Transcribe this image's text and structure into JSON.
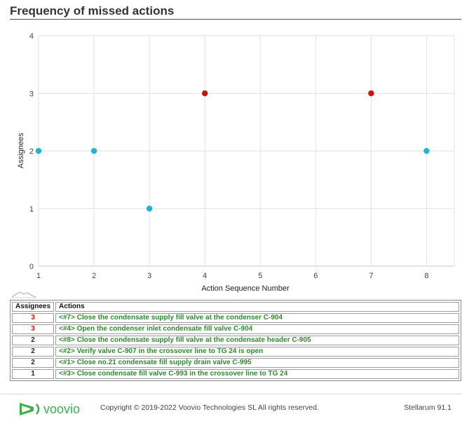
{
  "page": {
    "title": "Frequency of missed actions"
  },
  "chart_data": {
    "type": "scatter",
    "xlabel": "Action Sequence Number",
    "ylabel": "Assignees",
    "x_ticks": [
      1,
      2,
      3,
      4,
      5,
      6,
      7,
      8
    ],
    "y_ticks": [
      0,
      1,
      2,
      3,
      4
    ],
    "xlim": [
      1,
      8.5
    ],
    "ylim": [
      0,
      4
    ],
    "grid": true,
    "points": [
      {
        "x": 1,
        "y": 2,
        "color": "#1fb3d8"
      },
      {
        "x": 2,
        "y": 2,
        "color": "#1fb3d8"
      },
      {
        "x": 3,
        "y": 1,
        "color": "#1fb3d8"
      },
      {
        "x": 4,
        "y": 3,
        "color": "#cc1111"
      },
      {
        "x": 7,
        "y": 3,
        "color": "#cc1111"
      },
      {
        "x": 8,
        "y": 2,
        "color": "#1fb3d8"
      }
    ]
  },
  "table": {
    "headers": {
      "assignees": "Assignees",
      "actions": "Actions"
    },
    "rows": [
      {
        "assignees": "3",
        "action": "<#7> Close the condensate supply fill valve at the condenser C-904",
        "count_color": "#cc1111"
      },
      {
        "assignees": "3",
        "action": "<#4> Open the condenser inlet condensate fill valve C-904",
        "count_color": "#cc1111"
      },
      {
        "assignees": "2",
        "action": "<#8> Close the condensate supply fill valve at the condensate header C-905",
        "count_color": "#222222"
      },
      {
        "assignees": "2",
        "action": "<#2> Verify valve C-907 in the crossover line to TG 24 is open",
        "count_color": "#222222"
      },
      {
        "assignees": "2",
        "action": "<#1> Close no.21 condensate fill supply drain valve C-995",
        "count_color": "#222222"
      },
      {
        "assignees": "1",
        "action": "<#3> Close condensate fill valve C-993 in the crossover line to TG 24",
        "count_color": "#222222"
      }
    ]
  },
  "footer": {
    "logo_text": "voovio",
    "copyright": "Copyright © 2019-2022 Voovio Technologies SL    All rights reserved.",
    "version": "Stellarum 91.1"
  },
  "colors": {
    "action_text": "#2e8b2e",
    "logo_green": "#3db04a"
  }
}
